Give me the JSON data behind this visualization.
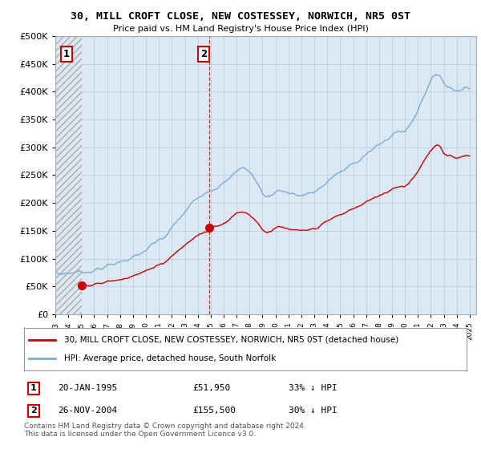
{
  "title": "30, MILL CROFT CLOSE, NEW COSTESSEY, NORWICH, NR5 0ST",
  "subtitle": "Price paid vs. HM Land Registry's House Price Index (HPI)",
  "legend_line1": "30, MILL CROFT CLOSE, NEW COSTESSEY, NORWICH, NR5 0ST (detached house)",
  "legend_line2": "HPI: Average price, detached house, South Norfolk",
  "sale1_label": "1",
  "sale1_date": "20-JAN-1995",
  "sale1_price": "£51,950",
  "sale1_hpi": "33% ↓ HPI",
  "sale1_year": 1995.05,
  "sale1_value": 51950,
  "sale2_label": "2",
  "sale2_date": "26-NOV-2004",
  "sale2_price": "£155,500",
  "sale2_hpi": "30% ↓ HPI",
  "sale2_year": 2004.9,
  "sale2_value": 155500,
  "hpi_color": "#7aadd4",
  "price_color": "#cc0000",
  "marker_color": "#cc0000",
  "footnote": "Contains HM Land Registry data © Crown copyright and database right 2024.\nThis data is licensed under the Open Government Licence v3.0.",
  "ylim": [
    0,
    500000
  ],
  "yticks": [
    0,
    50000,
    100000,
    150000,
    200000,
    250000,
    300000,
    350000,
    400000,
    450000,
    500000
  ],
  "xmin": 1993.0,
  "xmax": 2025.5,
  "background_color": "#ffffff",
  "plot_bg_color": "#dde8f5"
}
